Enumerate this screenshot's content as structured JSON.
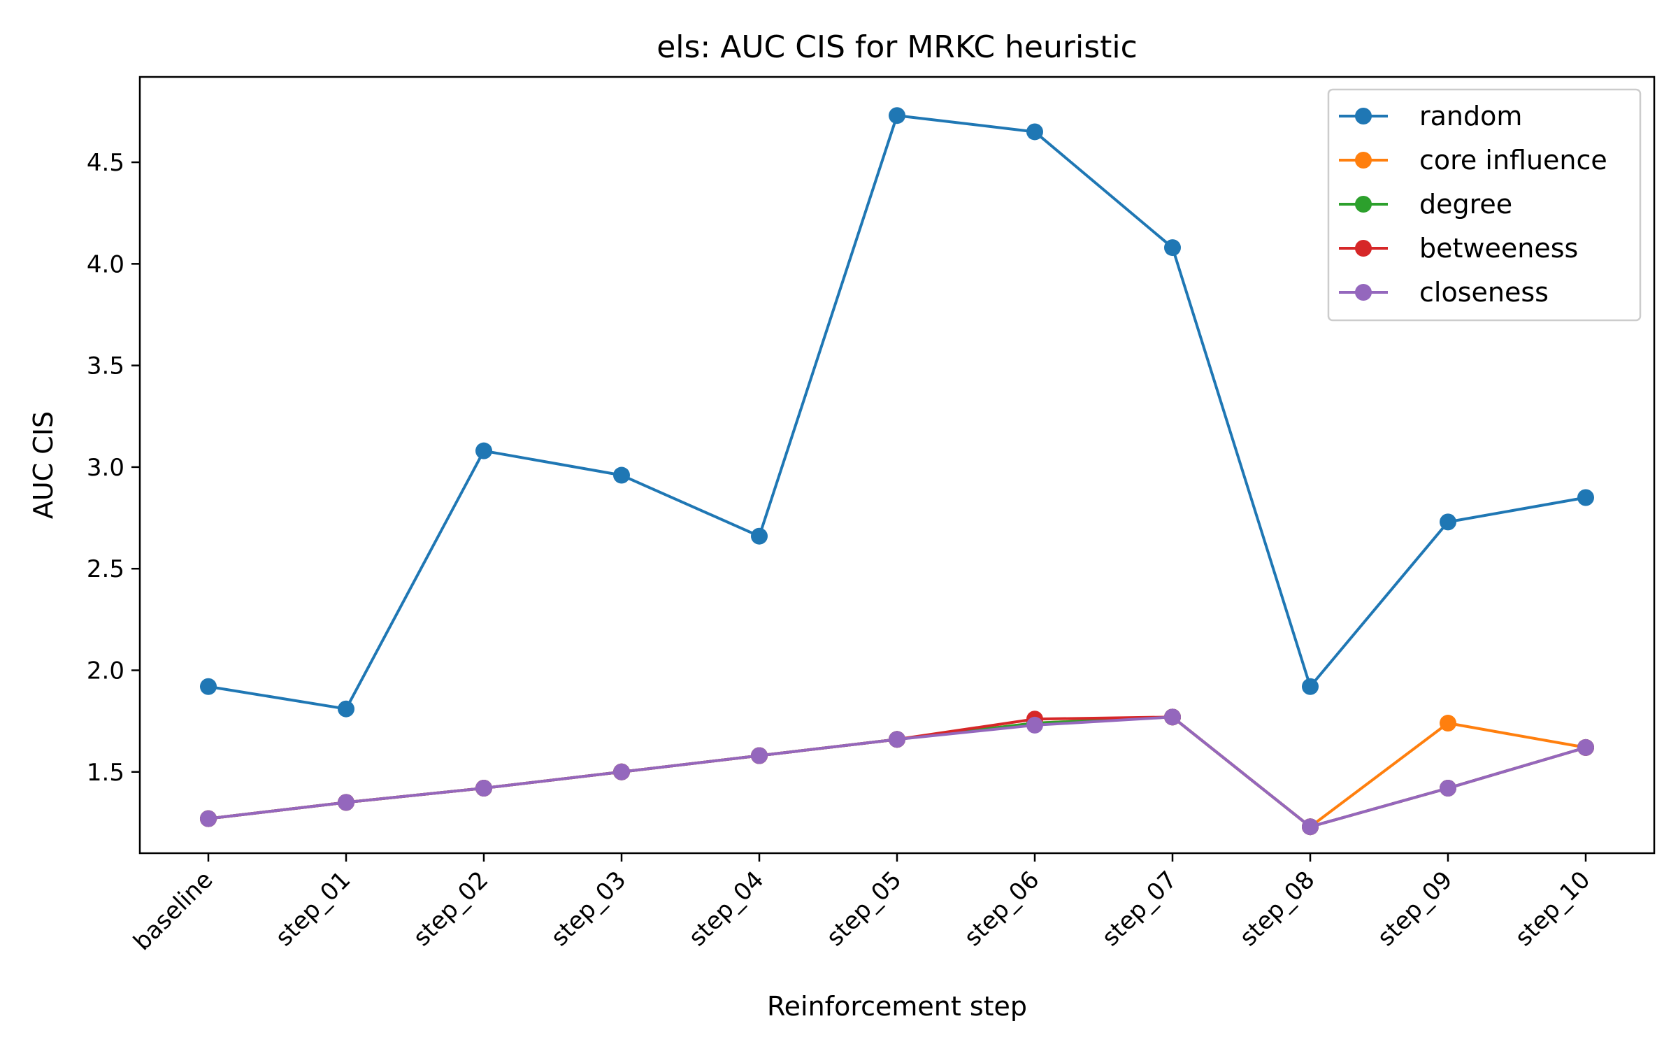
{
  "chart_data": {
    "type": "line",
    "title": "els: AUC CIS for MRKC heuristic",
    "xlabel": "Reinforcement step",
    "ylabel": "AUC CIS",
    "categories": [
      "baseline",
      "step_01",
      "step_02",
      "step_03",
      "step_04",
      "step_05",
      "step_06",
      "step_07",
      "step_08",
      "step_09",
      "step_10"
    ],
    "yticks": [
      "1.5",
      "2.0",
      "2.5",
      "3.0",
      "3.5",
      "4.0",
      "4.5"
    ],
    "ylim": [
      1.1,
      4.92
    ],
    "grid": false,
    "legend_position": "top-right",
    "series": [
      {
        "name": "random",
        "color": "#1f77b4",
        "values": [
          1.92,
          1.81,
          3.08,
          2.96,
          2.66,
          4.73,
          4.65,
          4.08,
          1.92,
          2.73,
          2.85
        ]
      },
      {
        "name": "core influence",
        "color": "#ff7f0e",
        "values": [
          1.27,
          1.35,
          1.42,
          1.5,
          1.58,
          1.66,
          1.74,
          1.77,
          1.23,
          1.74,
          1.62
        ]
      },
      {
        "name": "degree",
        "color": "#2ca02c",
        "values": [
          1.27,
          1.35,
          1.42,
          1.5,
          1.58,
          1.66,
          1.74,
          1.77,
          1.23,
          1.42,
          1.62
        ]
      },
      {
        "name": "betweeness",
        "color": "#d62728",
        "values": [
          1.27,
          1.35,
          1.42,
          1.5,
          1.58,
          1.66,
          1.76,
          1.77,
          1.23,
          1.42,
          1.62
        ]
      },
      {
        "name": "closeness",
        "color": "#9467bd",
        "values": [
          1.27,
          1.35,
          1.42,
          1.5,
          1.58,
          1.66,
          1.73,
          1.77,
          1.23,
          1.42,
          1.62
        ]
      }
    ]
  }
}
